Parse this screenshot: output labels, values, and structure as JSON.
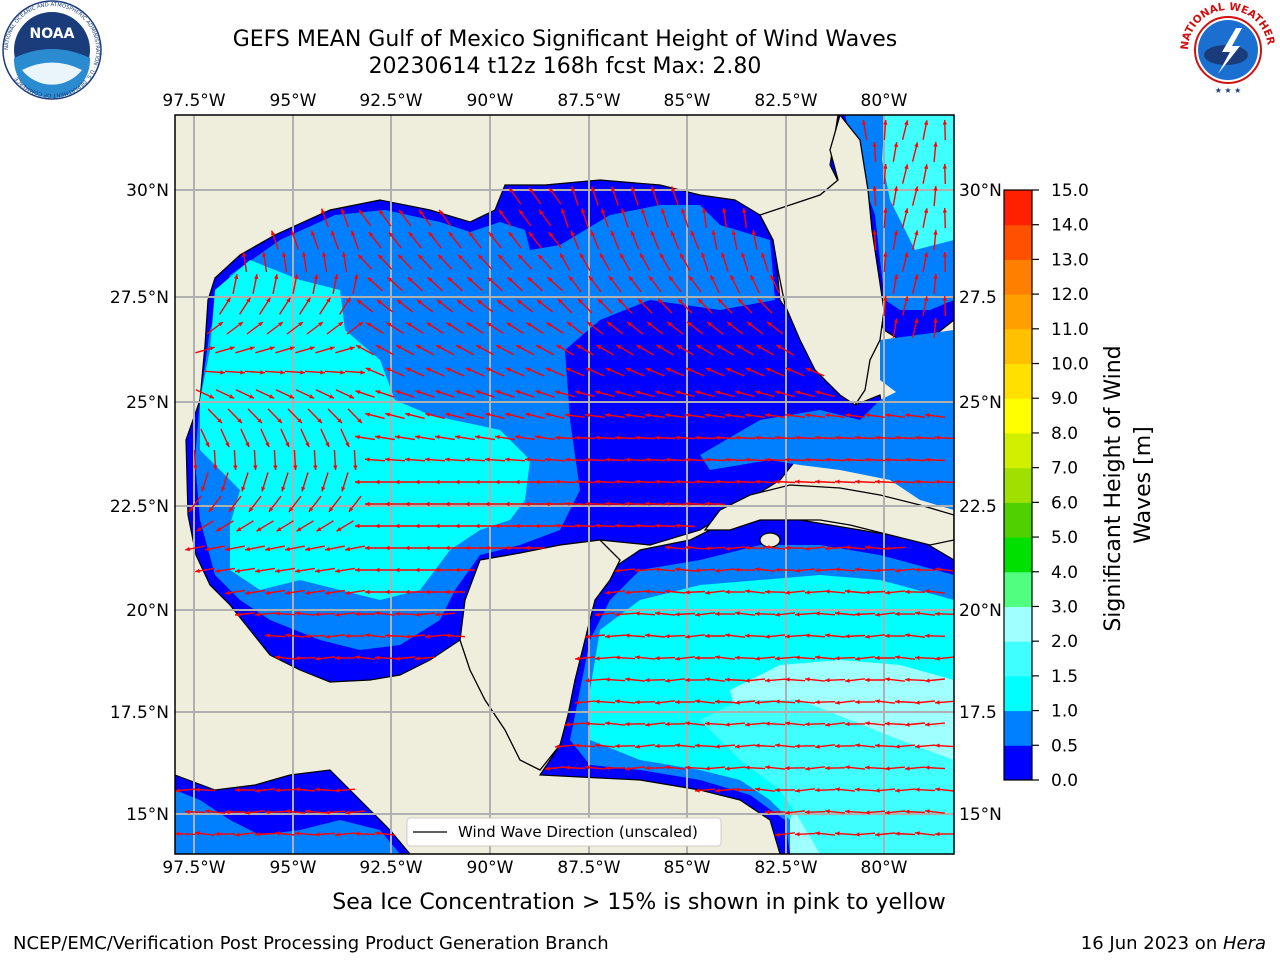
{
  "title_line1": "GEFS MEAN Gulf of Mexico Significant Height of Wind Waves",
  "title_line2": "20230614 t12z 168h fcst   Max: 2.80",
  "lon_ticks": [
    "97.5°W",
    "95°W",
    "92.5°W",
    "90°W",
    "87.5°W",
    "85°W",
    "82.5°W",
    "80°W"
  ],
  "lat_ticks_left": [
    "30°N",
    "27.5°N",
    "25°N",
    "22.5°N",
    "20°N",
    "17.5°N",
    "15°N"
  ],
  "lat_ticks_right": [
    "30°N",
    "27.5",
    "25°N",
    "22.5",
    "20°N",
    "17.5",
    "15°N"
  ],
  "legend_label": "Wind Wave Direction (unscaled)",
  "colorbar": {
    "label": "Significant Height of Wind Waves [m]",
    "ticks": [
      "0.0",
      "0.5",
      "1.0",
      "1.5",
      "2.0",
      "3.0",
      "4.0",
      "5.0",
      "6.0",
      "7.0",
      "8.0",
      "9.0",
      "10.0",
      "11.0",
      "12.0",
      "13.0",
      "14.0",
      "15.0"
    ],
    "colors": [
      "#0000ff",
      "#0080ff",
      "#00ffff",
      "#40ffff",
      "#a0ffff",
      "#50ff80",
      "#00e000",
      "#50d000",
      "#a0e000",
      "#d0f000",
      "#ffff00",
      "#ffe000",
      "#ffc000",
      "#ffa000",
      "#ff8000",
      "#ff5000",
      "#ff2000"
    ]
  },
  "land_color": "#efeddc",
  "arrow_color": "#ff0000",
  "footnote": "Sea Ice Concentration > 15% is shown in pink to yellow",
  "credit_left": "NCEP/EMC/Verification Post Processing Product Generation Branch",
  "credit_date": "16 Jun 2023 on ",
  "credit_host": "Hera",
  "logos": {
    "noaa": "NOAA",
    "noaa_ring": "NATIONAL OCEANIC AND ATMOSPHERIC ADMINISTRATION · U.S. DEPARTMENT OF COMMERCE",
    "nws_ring": "NATIONAL WEATHER SERVICE"
  }
}
